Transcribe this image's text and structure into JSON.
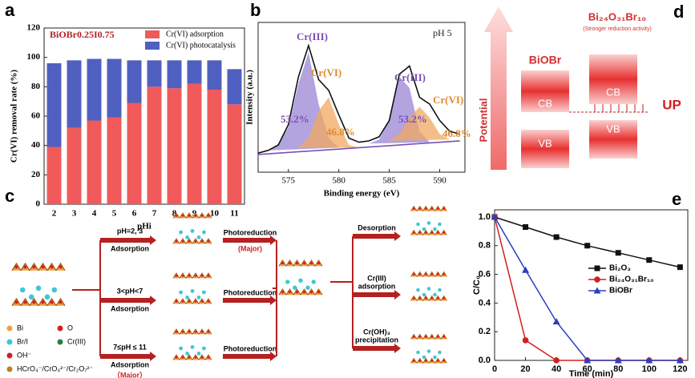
{
  "panel_labels": [
    "a",
    "b",
    "c",
    "d",
    "e"
  ],
  "chart_data": [
    {
      "type": "bar",
      "stacked": true,
      "categories": [
        "2",
        "3",
        "4",
        "5",
        "6",
        "7",
        "8",
        "9",
        "10",
        "11"
      ],
      "x_label": "pHi",
      "y_label": "Cr(VI) removal rate (%)",
      "annotations": [
        {
          "text": "BiOBr0.25I0.75",
          "color": "#b22222"
        }
      ],
      "series": [
        {
          "name": "Cr(VI) adsorption",
          "color": "#f05a5a",
          "values": [
            39,
            52,
            57,
            59,
            69,
            80,
            79,
            82,
            78,
            68
          ]
        },
        {
          "name": "Cr(VI) photocatalysis",
          "color": "#5060c0",
          "values": [
            57,
            46,
            42,
            40,
            29,
            18,
            19,
            16,
            20,
            24
          ]
        }
      ],
      "ylim": [
        0,
        120
      ],
      "yticks": [
        0,
        20,
        40,
        60,
        80,
        100,
        120
      ],
      "legend": "top right"
    },
    {
      "type": "line",
      "x_label": "Binding energy (eV)",
      "y_label": "Intensity (a.u.)",
      "xlim": [
        572,
        592.5
      ],
      "xticks": [
        575,
        580,
        585,
        590
      ],
      "ylim": [
        0,
        110
      ],
      "annotations": [
        {
          "text": "pH 5",
          "color": "#222"
        },
        {
          "text": "Cr(III)",
          "color": "#7b4fb5"
        },
        {
          "text": "Cr(VI)",
          "color": "#e08a2a"
        },
        {
          "text": "Cr(III)",
          "color": "#7b4fb5"
        },
        {
          "text": "Cr(VI)",
          "color": "#e08a2a"
        },
        {
          "text": "53.2%",
          "color": "#7b4fb5"
        },
        {
          "text": "46.8%",
          "color": "#e08a2a"
        },
        {
          "text": "53.2%",
          "color": "#7b4fb5"
        },
        {
          "text": "46.8%",
          "color": "#e08a2a"
        }
      ],
      "series": [
        {
          "color": "#9a86d6",
          "fill": true,
          "x": [
            573,
            574,
            575,
            576,
            577,
            578,
            579,
            580
          ],
          "values": [
            16,
            20,
            33,
            65,
            88,
            50,
            25,
            18
          ]
        },
        {
          "color": "#f0a860",
          "fill": true,
          "x": [
            576,
            577,
            578,
            579,
            580,
            581,
            582
          ],
          "values": [
            18,
            25,
            45,
            55,
            35,
            20,
            18
          ]
        },
        {
          "color": "#9a86d6",
          "fill": true,
          "x": [
            583,
            584,
            585,
            586,
            587,
            588,
            589
          ],
          "values": [
            21,
            24,
            38,
            70,
            62,
            30,
            22
          ]
        },
        {
          "color": "#f0a860",
          "fill": true,
          "x": [
            585,
            586,
            587,
            588,
            589,
            590,
            591
          ],
          "values": [
            23,
            28,
            40,
            48,
            40,
            28,
            24
          ]
        },
        {
          "color": "#7b4fb5",
          "x": [
            572,
            592
          ],
          "values": [
            13,
            23
          ]
        },
        {
          "color": "#111111",
          "x": [
            572,
            573,
            574,
            575,
            576,
            577,
            578,
            579,
            580,
            581,
            582,
            583,
            584,
            585,
            586,
            587,
            588,
            589,
            590,
            591,
            592
          ],
          "values": [
            14,
            16,
            20,
            35,
            70,
            93,
            68,
            60,
            42,
            25,
            22,
            23,
            26,
            38,
            72,
            78,
            55,
            50,
            38,
            30,
            28
          ]
        }
      ]
    },
    {
      "type": "line",
      "x_label": "Time (min)",
      "y_label": "C/C₀",
      "x": [
        0,
        20,
        40,
        60,
        80,
        100,
        120
      ],
      "xlim": [
        0,
        125
      ],
      "xticks": [
        0,
        20,
        40,
        60,
        80,
        100,
        120
      ],
      "ylim": [
        0,
        1.05
      ],
      "yticks": [
        {
          "value": 0,
          "label": "0.0"
        },
        {
          "value": 0.2,
          "label": "0.2"
        },
        {
          "value": 0.4,
          "label": "0.4"
        },
        {
          "value": 0.6,
          "label": "0.6"
        },
        {
          "value": 0.8,
          "label": "0.8"
        },
        {
          "value": 1,
          "label": "1.0"
        }
      ],
      "series": [
        {
          "name": "Bi₂O₃",
          "color": "#111111",
          "marker": "square",
          "values": [
            1,
            0.93,
            0.86,
            0.8,
            0.75,
            0.7,
            0.65
          ]
        },
        {
          "name": "Bi₂₄O₃₁Br₁₀",
          "color": "#d02020",
          "marker": "circle",
          "values": [
            1,
            0.14,
            0,
            0,
            0,
            0,
            0
          ]
        },
        {
          "name": "BiOBr",
          "color": "#2a3fc0",
          "marker": "triangle",
          "values": [
            1,
            0.63,
            0.27,
            0,
            0,
            0,
            0
          ]
        }
      ],
      "legend": "center right"
    }
  ],
  "diagram_c": {
    "conditions": [
      {
        "ph": "pH=2, 3",
        "process": "Adsorption",
        "step": "Photoreduction",
        "note": "(Major)"
      },
      {
        "ph": "3<pH<7",
        "process": "Adsorption",
        "step": "Photoreduction"
      },
      {
        "ph": "7≤pH ≤ 11",
        "process": "Adsorption",
        "step": "Photoreduction",
        "note": "（Major）"
      }
    ],
    "outcomes": [
      [
        "Desorption"
      ],
      [
        "Cr(III)",
        "adsorption"
      ],
      [
        "Cr(OH)₃",
        "precipitation"
      ]
    ],
    "legend": [
      "Bi",
      "O",
      "Br/I",
      "Cr(III)",
      "OH⁻",
      "HCrO₄⁻/CrO₄²⁻/Cr₂O₇²⁻"
    ]
  },
  "diagram_d": {
    "axis": "Potential",
    "left": {
      "title": "BiOBr",
      "cb": "CB",
      "vb": "VB"
    },
    "right": {
      "title": "Bi₂₄O₃₁Br₁₀",
      "subtitle": "(Stronger reduction activity)",
      "cb": "CB",
      "vb": "VB"
    },
    "shift": "UP"
  }
}
